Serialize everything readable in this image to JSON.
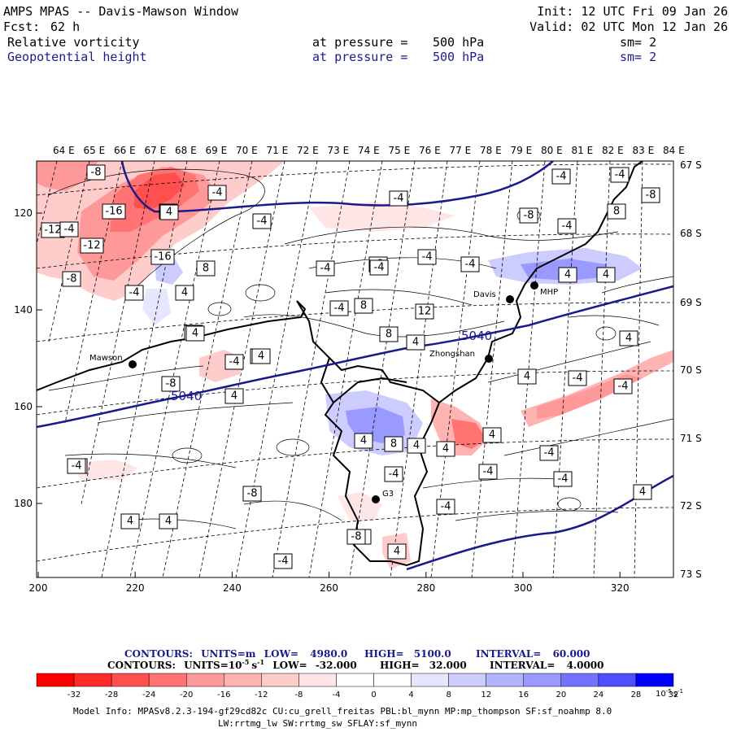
{
  "header": {
    "title": "AMPS MPAS -- Davis-Mawson Window",
    "fcst_label": "Fcst:",
    "fcst_value": "62 h",
    "init": "Init: 12 UTC Fri 09 Jan 26",
    "valid": "Valid: 02 UTC Mon 12 Jan 26",
    "field1": {
      "name": "Relative vorticity",
      "level_text": "at pressure =",
      "level": "500 hPa",
      "sm": "sm= 2"
    },
    "field2": {
      "name": "Geopotential height",
      "level_text": "at pressure =",
      "level": "500 hPa",
      "sm": "sm= 2"
    }
  },
  "map": {
    "top_lon_labels": [
      "64 E",
      "65 E",
      "66 E",
      "67 E",
      "68 E",
      "69 E",
      "70 E",
      "71 E",
      "72 E",
      "73 E",
      "74 E",
      "75 E",
      "76 E",
      "77 E",
      "78 E",
      "79 E",
      "80 E",
      "81 E",
      "82 E",
      "83 E",
      "84 E"
    ],
    "right_lat_labels": [
      "67 S",
      "68 S",
      "69 S",
      "70 S",
      "71 S",
      "72 S",
      "73 S"
    ],
    "x_ticks": [
      "200",
      "220",
      "240",
      "260",
      "280",
      "300",
      "320"
    ],
    "y_ticks": [
      "120",
      "140",
      "160",
      "180"
    ],
    "stations": [
      {
        "name": "Mawson"
      },
      {
        "name": "Davis"
      },
      {
        "name": "Zhongshan"
      },
      {
        "name": "MHP"
      },
      {
        "name": "G3"
      }
    ],
    "height_labels": [
      "5040",
      "5040"
    ],
    "vort_labels": [
      "-8",
      "-12",
      "-8",
      "-16",
      "-4",
      "-12",
      "-8",
      "-16",
      "-4",
      "8",
      "4",
      "-4",
      "-8",
      "-4",
      "-4",
      "-4",
      "8",
      "12",
      "8",
      "4",
      "-4",
      "-4",
      "-8",
      "-8",
      "-4",
      "8",
      "-4",
      "-4",
      "4",
      "-4",
      "4",
      "4",
      "-8",
      "4",
      "-4",
      "4",
      "-8",
      "4",
      "-4",
      "-4",
      "4",
      "4",
      "4",
      "-4",
      "-4",
      "-4",
      "12",
      "8",
      "-4",
      "-8",
      "-4",
      "4",
      "4",
      "4",
      "-4",
      "4",
      "-8",
      "-8",
      "4",
      "4",
      "4",
      "-4",
      "-4",
      "-4",
      "4",
      "4"
    ]
  },
  "legend": {
    "line1": {
      "label": "CONTOURS:",
      "units": "UNITS=m",
      "low": "LOW=",
      "low_val": "4980.0",
      "high": "HIGH=",
      "high_val": "5100.0",
      "interval": "INTERVAL=",
      "interval_val": "60.000"
    },
    "line2": {
      "label": "CONTOURS:",
      "units": "UNITS=10",
      "units_exp": "-5",
      "units_tail": "s",
      "units_tail_exp": "-1",
      "low": "LOW=",
      "low_val": "-32.000",
      "high": "HIGH=",
      "high_val": "32.000",
      "interval": "INTERVAL=",
      "interval_val": "4.0000"
    }
  },
  "colorbar": {
    "ticks": [
      "-32",
      "-28",
      "-24",
      "-20",
      "-16",
      "-12",
      "-8",
      "-4",
      "0",
      "4",
      "8",
      "12",
      "16",
      "20",
      "24",
      "28",
      "32"
    ],
    "unit": "10",
    "unit_exp": "-5",
    "unit_tail": "s",
    "unit_tail_exp": "-1",
    "colors": [
      "#ff0000",
      "#ff2a2a",
      "#ff4f4f",
      "#ff7373",
      "#ff9999",
      "#ffb3b3",
      "#ffcccc",
      "#ffe6e6",
      "#ffffff",
      "#ffffff",
      "#e6e6ff",
      "#ccccff",
      "#b3b3ff",
      "#9999ff",
      "#7373ff",
      "#4f4fff",
      "#0000ff"
    ]
  },
  "footer": {
    "line1": "Model Info: MPASv8.2.3-194-gf29cd82c CU:cu_grell_freitas PBL:bl_mynn MP:mp_thompson SF:sf_noahmp 8.0",
    "line2": "LW:rrtmg_lw SW:rrtmg_sw SFLAY:sf_mynn"
  }
}
